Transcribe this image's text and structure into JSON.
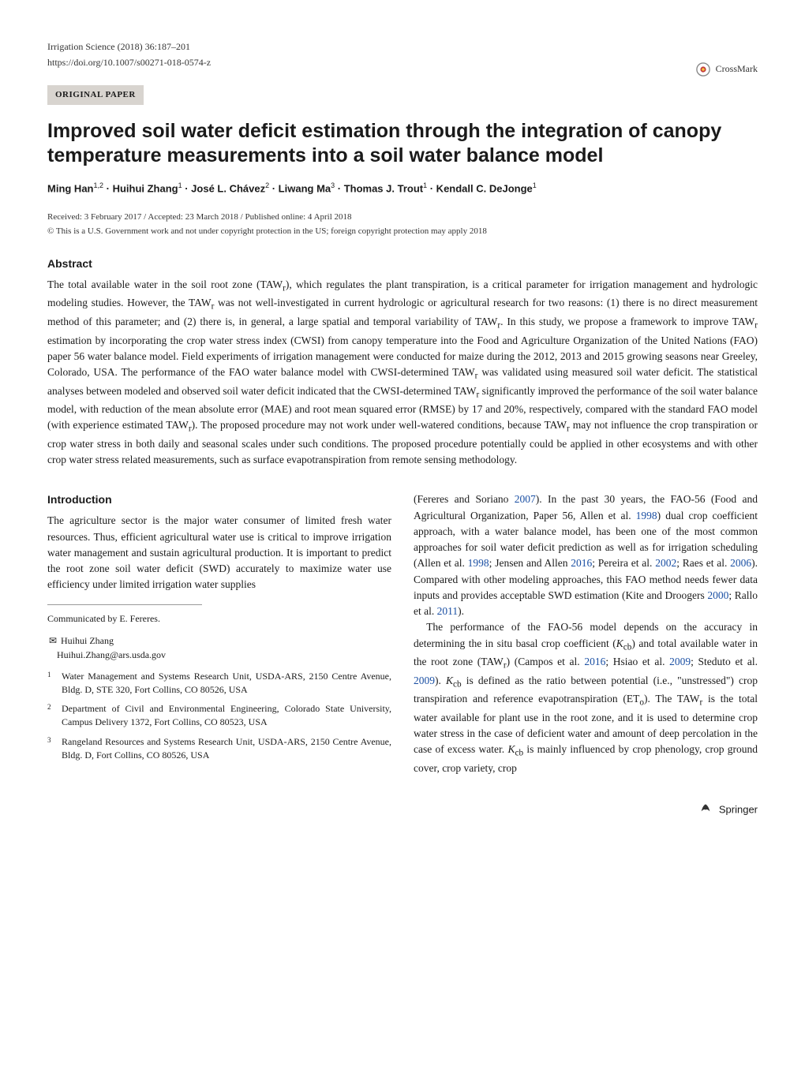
{
  "header": {
    "journal": "Irrigation Science (2018) 36:187–201",
    "doi": "https://doi.org/10.1007/s00271-018-0574-z",
    "paper_type": "ORIGINAL PAPER",
    "crossmark_label": "CrossMark"
  },
  "title": "Improved soil water deficit estimation through the integration of canopy temperature measurements into a soil water balance model",
  "authors_html": "Ming Han<sup>1,2</sup> · Huihui Zhang<sup>1</sup> · José L. Chávez<sup>2</sup> · Liwang Ma<sup>3</sup> · Thomas J. Trout<sup>1</sup> · Kendall C. DeJonge<sup>1</sup>",
  "dates": "Received: 3 February 2017 / Accepted: 23 March 2018 / Published online: 4 April 2018",
  "copyright": "© This is a U.S. Government work and not under copyright protection in the US; foreign copyright protection may apply 2018",
  "abstract_heading": "Abstract",
  "abstract": "The total available water in the soil root zone (TAW_r), which regulates the plant transpiration, is a critical parameter for irrigation management and hydrologic modeling studies. However, the TAW_r was not well-investigated in current hydrologic or agricultural research for two reasons: (1) there is no direct measurement method of this parameter; and (2) there is, in general, a large spatial and temporal variability of TAW_r. In this study, we propose a framework to improve TAW_r estimation by incorporating the crop water stress index (CWSI) from canopy temperature into the Food and Agriculture Organization of the United Nations (FAO) paper 56 water balance model. Field experiments of irrigation management were conducted for maize during the 2012, 2013 and 2015 growing seasons near Greeley, Colorado, USA. The performance of the FAO water balance model with CWSI-determined TAW_r was validated using measured soil water deficit. The statistical analyses between modeled and observed soil water deficit indicated that the CWSI-determined TAW_r significantly improved the performance of the soil water balance model, with reduction of the mean absolute error (MAE) and root mean squared error (RMSE) by 17 and 20%, respectively, compared with the standard FAO model (with experience estimated TAW_r). The proposed procedure may not work under well-watered conditions, because TAW_r may not influence the crop transpiration or crop water stress in both daily and seasonal scales under such conditions. The proposed procedure potentially could be applied in other ecosystems and with other crop water stress related measurements, such as surface evapotranspiration from remote sensing methodology.",
  "intro_heading": "Introduction",
  "left_col_p1": "The agriculture sector is the major water consumer of limited fresh water resources. Thus, efficient agricultural water use is critical to improve irrigation water management and sustain agricultural production. It is important to predict the root zone soil water deficit (SWD) accurately to maximize water use efficiency under limited irrigation water supplies",
  "communicated": "Communicated by E. Fereres.",
  "corresponding": {
    "name": "Huihui Zhang",
    "email": "Huihui.Zhang@ars.usda.gov"
  },
  "affiliations": [
    {
      "num": "1",
      "text": "Water Management and Systems Research Unit, USDA-ARS, 2150 Centre Avenue, Bldg. D, STE 320, Fort Collins, CO 80526, USA"
    },
    {
      "num": "2",
      "text": "Department of Civil and Environmental Engineering, Colorado State University, Campus Delivery 1372, Fort Collins, CO 80523, USA"
    },
    {
      "num": "3",
      "text": "Rangeland Resources and Systems Research Unit, USDA-ARS, 2150 Centre Avenue, Bldg. D, Fort Collins, CO 80526, USA"
    }
  ],
  "right_col_p1": "(Fereres and Soriano 2007). In the past 30 years, the FAO-56 (Food and Agricultural Organization, Paper 56, Allen et al. 1998) dual crop coefficient approach, with a water balance model, has been one of the most common approaches for soil water deficit prediction as well as for irrigation scheduling (Allen et al. 1998; Jensen and Allen 2016; Pereira et al. 2002; Raes et al. 2006). Compared with other modeling approaches, this FAO method needs fewer data inputs and provides acceptable SWD estimation (Kite and Droogers 2000; Rallo et al. 2011).",
  "right_col_p2": "The performance of the FAO-56 model depends on the accuracy in determining the in situ basal crop coefficient (K_cb) and total available water in the root zone (TAW_r) (Campos et al. 2016; Hsiao et al. 2009; Steduto et al. 2009). K_cb is defined as the ratio between potential (i.e., \"unstressed\") crop transpiration and reference evapotranspiration (ET_o). The TAW_r is the total water available for plant use in the root zone, and it is used to determine crop water stress in the case of deficient water and amount of deep percolation in the case of excess water. K_cb is mainly influenced by crop phenology, crop ground cover, crop variety, crop",
  "springer_label": "Springer",
  "colors": {
    "link": "#1a4fa3",
    "banner_bg": "#d8d4cf",
    "text": "#1a1a1a"
  },
  "typography": {
    "body_font": "Georgia, Times New Roman, serif",
    "heading_font": "Arial, Helvetica, sans-serif",
    "title_size_pt": 19,
    "body_size_pt": 10,
    "abstract_size_pt": 10
  }
}
